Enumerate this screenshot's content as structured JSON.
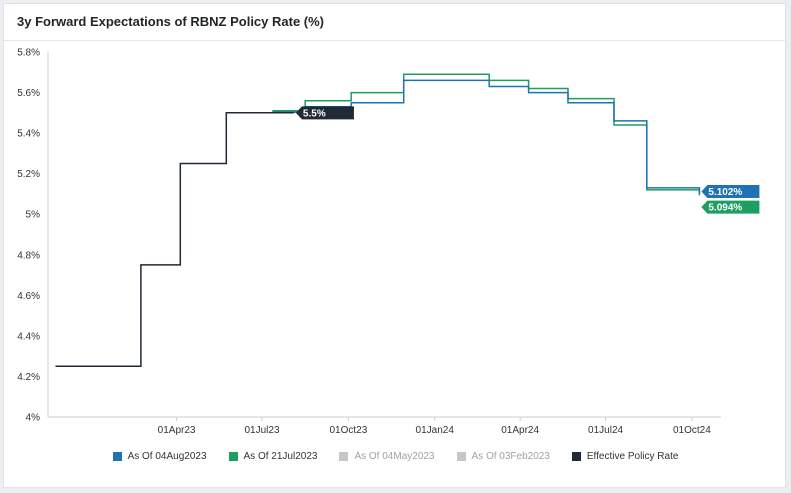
{
  "chart_data": {
    "type": "line",
    "title": "3y Forward Expectations of RBNZ Policy Rate (%)",
    "y_axis": {
      "min": 4.0,
      "max": 5.8,
      "ticks": [
        {
          "value": 4.0,
          "label": "4%"
        },
        {
          "value": 4.2,
          "label": "4.2%"
        },
        {
          "value": 4.4,
          "label": "4.4%"
        },
        {
          "value": 4.6,
          "label": "4.6%"
        },
        {
          "value": 4.8,
          "label": "4.8%"
        },
        {
          "value": 5.0,
          "label": "5%"
        },
        {
          "value": 5.2,
          "label": "5.2%"
        },
        {
          "value": 5.4,
          "label": "5.4%"
        },
        {
          "value": 5.6,
          "label": "5.6%"
        },
        {
          "value": 5.8,
          "label": "5.8%"
        }
      ],
      "grid": false
    },
    "x_axis": {
      "min": "2022-11-15",
      "max": "2024-11-01",
      "ticks": [
        {
          "date": "2023-04-01",
          "label": "01Apr23"
        },
        {
          "date": "2023-07-01",
          "label": "01Jul23"
        },
        {
          "date": "2023-10-01",
          "label": "01Oct23"
        },
        {
          "date": "2024-01-01",
          "label": "01Jan24"
        },
        {
          "date": "2024-04-01",
          "label": "01Apr24"
        },
        {
          "date": "2024-07-01",
          "label": "01Jul24"
        },
        {
          "date": "2024-10-01",
          "label": "01Oct24"
        }
      ]
    },
    "legend_position": "bottom",
    "series": [
      {
        "name": "Effective Policy Rate",
        "color": "#1f2a36",
        "points": [
          [
            "2022-11-23",
            4.25
          ],
          [
            "2023-02-22",
            4.75
          ],
          [
            "2023-04-05",
            5.25
          ],
          [
            "2023-05-24",
            5.5
          ],
          [
            "2023-08-04",
            5.5
          ]
        ],
        "label": "5.5%"
      },
      {
        "name": "As Of 04Aug2023",
        "color": "#1f73b4",
        "points": [
          [
            "2023-07-12",
            5.503
          ],
          [
            "2023-08-16",
            5.53
          ],
          [
            "2023-10-04",
            5.55
          ],
          [
            "2023-11-29",
            5.66
          ],
          [
            "2024-02-28",
            5.63
          ],
          [
            "2024-04-10",
            5.6
          ],
          [
            "2024-05-22",
            5.55
          ],
          [
            "2024-07-10",
            5.46
          ],
          [
            "2024-08-14",
            5.13
          ],
          [
            "2024-10-09",
            5.102
          ]
        ],
        "label": "5.102%"
      },
      {
        "name": "As Of 21Jul2023",
        "color": "#1e9e63",
        "points": [
          [
            "2023-07-12",
            5.51
          ],
          [
            "2023-08-16",
            5.56
          ],
          [
            "2023-10-04",
            5.6
          ],
          [
            "2023-11-29",
            5.69
          ],
          [
            "2024-02-28",
            5.66
          ],
          [
            "2024-04-10",
            5.62
          ],
          [
            "2024-05-22",
            5.57
          ],
          [
            "2024-07-10",
            5.44
          ],
          [
            "2024-08-14",
            5.12
          ],
          [
            "2024-10-09",
            5.094
          ]
        ],
        "label": "5.094%"
      }
    ]
  },
  "legend": [
    {
      "label": "As Of 04Aug2023",
      "color": "#1f73b4",
      "active": true
    },
    {
      "label": "As Of 21Jul2023",
      "color": "#1e9e63",
      "active": true
    },
    {
      "label": "As Of 04May2023",
      "color": "#c4c7ca",
      "active": false
    },
    {
      "label": "As Of 03Feb2023",
      "color": "#c4c7ca",
      "active": false
    },
    {
      "label": "Effective Policy Rate",
      "color": "#1f2a36",
      "active": true
    }
  ]
}
